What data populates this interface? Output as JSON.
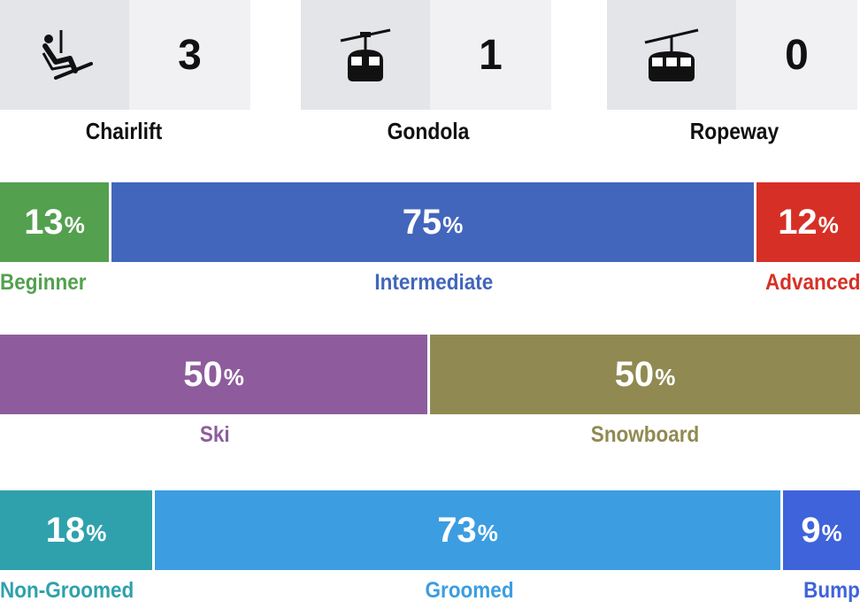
{
  "lifts": [
    {
      "icon": "chairlift-icon",
      "count": "3",
      "label": "Chairlift"
    },
    {
      "icon": "gondola-icon",
      "count": "1",
      "label": "Gondola"
    },
    {
      "icon": "ropeway-icon",
      "count": "0",
      "label": "Ropeway"
    }
  ],
  "difficulty": {
    "segments": [
      {
        "value": "13",
        "unit": "%",
        "fraction": 0.13,
        "label": "Beginner",
        "color": "#53a04f"
      },
      {
        "value": "75",
        "unit": "%",
        "fraction": 0.75,
        "label": "Intermediate",
        "color": "#4266bb"
      },
      {
        "value": "12",
        "unit": "%",
        "fraction": 0.12,
        "label": "Advanced",
        "color": "#d63026"
      }
    ]
  },
  "activity": {
    "segments": [
      {
        "value": "50",
        "unit": "%",
        "fraction": 0.5,
        "label": "Ski",
        "color": "#8e5c9d"
      },
      {
        "value": "50",
        "unit": "%",
        "fraction": 0.5,
        "label": "Snowboard",
        "color": "#908a52"
      }
    ]
  },
  "grooming": {
    "segments": [
      {
        "value": "18",
        "unit": "%",
        "fraction": 0.18,
        "label": "Non-Groomed",
        "color": "#2fa1ad"
      },
      {
        "value": "73",
        "unit": "%",
        "fraction": 0.73,
        "label": "Groomed",
        "color": "#3c9de1"
      },
      {
        "value": "9",
        "unit": "%",
        "fraction": 0.09,
        "label": "Bump",
        "color": "#3f63da"
      }
    ]
  }
}
